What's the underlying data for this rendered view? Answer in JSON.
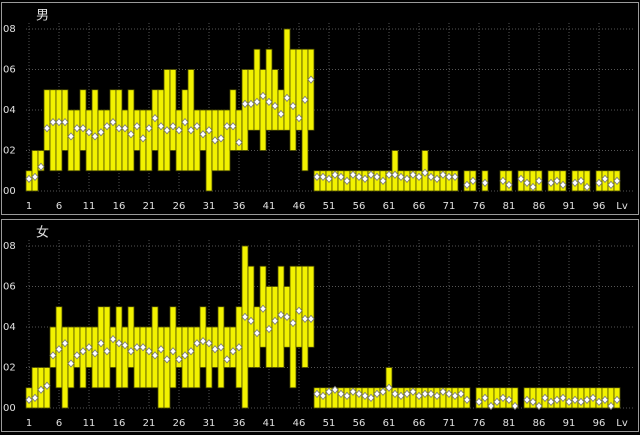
{
  "chart_data": [
    {
      "type": "range",
      "title": "男",
      "x_label": "Lv",
      "color": "#f2f200",
      "marker_color": "#ffffff",
      "grid": true,
      "x": [
        1,
        2,
        3,
        4,
        5,
        6,
        7,
        8,
        9,
        10,
        11,
        12,
        13,
        14,
        15,
        16,
        17,
        18,
        19,
        20,
        21,
        22,
        23,
        24,
        25,
        26,
        27,
        28,
        29,
        30,
        31,
        32,
        33,
        34,
        35,
        36,
        37,
        38,
        39,
        40,
        41,
        42,
        43,
        44,
        45,
        46,
        47,
        48,
        49,
        50,
        51,
        52,
        53,
        54,
        55,
        56,
        57,
        58,
        59,
        60,
        61,
        62,
        63,
        64,
        65,
        66,
        67,
        68,
        69,
        70,
        71,
        72,
        73,
        74,
        75,
        76,
        77,
        78,
        79,
        80,
        81,
        82,
        83,
        84,
        85,
        86,
        87,
        88,
        89,
        90,
        91,
        92,
        93,
        94,
        95,
        96,
        97,
        98,
        99
      ],
      "min": [
        0,
        0,
        1,
        2,
        1,
        1,
        2,
        1,
        1,
        2,
        1,
        1,
        1,
        1,
        1,
        1,
        1,
        1,
        2,
        1,
        1,
        2,
        1,
        1,
        2,
        1,
        1,
        1,
        1,
        2,
        0,
        1,
        1,
        1,
        2,
        2,
        2,
        3,
        3,
        2,
        3,
        3,
        3,
        3,
        2,
        3,
        1,
        3,
        0,
        0,
        0,
        0,
        0,
        0,
        0,
        0,
        0,
        0,
        0,
        0,
        0,
        0,
        0,
        0,
        0,
        0,
        0,
        0,
        0,
        0,
        0,
        0,
        null,
        0,
        0,
        null,
        0,
        null,
        null,
        0,
        0,
        null,
        0,
        0,
        0,
        0,
        null,
        0,
        0,
        0,
        null,
        0,
        0,
        0,
        null,
        0,
        0,
        0,
        0
      ],
      "max": [
        1,
        2,
        2,
        5,
        5,
        5,
        5,
        4,
        4,
        5,
        4,
        5,
        4,
        4,
        5,
        5,
        4,
        5,
        4,
        4,
        4,
        5,
        5,
        6,
        6,
        4,
        5,
        6,
        4,
        4,
        4,
        4,
        4,
        4,
        5,
        4,
        6,
        6,
        7,
        6,
        7,
        6,
        5,
        8,
        7,
        7,
        7,
        7,
        1,
        1,
        1,
        1,
        1,
        1,
        1,
        1,
        1,
        1,
        1,
        1,
        1,
        2,
        1,
        1,
        1,
        1,
        2,
        1,
        1,
        1,
        1,
        1,
        null,
        1,
        1,
        null,
        1,
        null,
        null,
        1,
        1,
        null,
        1,
        1,
        1,
        1,
        null,
        1,
        1,
        1,
        null,
        1,
        1,
        1,
        null,
        1,
        1,
        1,
        1
      ],
      "values": [
        0.6,
        0.7,
        1.2,
        3.1,
        3.4,
        3.4,
        3.4,
        2.7,
        3.1,
        3.1,
        2.9,
        2.7,
        2.9,
        3.2,
        3.4,
        3.1,
        3.1,
        2.8,
        3.2,
        2.6,
        3.1,
        3.6,
        3.2,
        3.0,
        3.2,
        3.0,
        3.4,
        3.0,
        3.2,
        2.8,
        3.0,
        2.5,
        2.6,
        3.2,
        3.2,
        2.4,
        4.3,
        4.3,
        4.4,
        4.7,
        4.4,
        4.2,
        3.8,
        4.6,
        4.2,
        3.6,
        4.5,
        5.5,
        0.7,
        0.7,
        0.6,
        0.8,
        0.7,
        0.5,
        0.8,
        0.7,
        0.6,
        0.8,
        0.7,
        0.5,
        0.8,
        0.8,
        0.7,
        0.6,
        0.8,
        0.7,
        0.9,
        0.7,
        0.6,
        0.8,
        0.7,
        0.7,
        null,
        0.3,
        0.5,
        null,
        0.4,
        null,
        null,
        0.5,
        0.3,
        null,
        0.6,
        0.4,
        0.2,
        0.5,
        null,
        0.4,
        0.5,
        0.3,
        null,
        0.4,
        0.5,
        0.2,
        null,
        0.4,
        0.6,
        0.3,
        0.5
      ],
      "xlim": [
        0.5,
        100.5
      ],
      "xticks": [
        1,
        6,
        11,
        16,
        21,
        26,
        31,
        36,
        41,
        46,
        51,
        56,
        61,
        66,
        71,
        76,
        81,
        86,
        91,
        96
      ],
      "ylim": [
        0,
        8
      ],
      "yticks": [
        {
          "value": 0,
          "label": "00"
        },
        {
          "value": 2,
          "label": "02"
        },
        {
          "value": 4,
          "label": "04"
        },
        {
          "value": 6,
          "label": "06"
        },
        {
          "value": 8,
          "label": "08"
        }
      ]
    },
    {
      "type": "range",
      "title": "女",
      "x_label": "Lv",
      "color": "#f2f200",
      "marker_color": "#ffffff",
      "grid": true,
      "x": [
        1,
        2,
        3,
        4,
        5,
        6,
        7,
        8,
        9,
        10,
        11,
        12,
        13,
        14,
        15,
        16,
        17,
        18,
        19,
        20,
        21,
        22,
        23,
        24,
        25,
        26,
        27,
        28,
        29,
        30,
        31,
        32,
        33,
        34,
        35,
        36,
        37,
        38,
        39,
        40,
        41,
        42,
        43,
        44,
        45,
        46,
        47,
        48,
        49,
        50,
        51,
        52,
        53,
        54,
        55,
        56,
        57,
        58,
        59,
        60,
        61,
        62,
        63,
        64,
        65,
        66,
        67,
        68,
        69,
        70,
        71,
        72,
        73,
        74,
        75,
        76,
        77,
        78,
        79,
        80,
        81,
        82,
        83,
        84,
        85,
        86,
        87,
        88,
        89,
        90,
        91,
        92,
        93,
        94,
        95,
        96,
        97,
        98,
        99
      ],
      "min": [
        0,
        0,
        0,
        0,
        2,
        1,
        0,
        1,
        2,
        1,
        2,
        1,
        1,
        1,
        2,
        1,
        1,
        2,
        1,
        1,
        1,
        1,
        0,
        0,
        1,
        2,
        1,
        1,
        1,
        2,
        1,
        2,
        1,
        2,
        2,
        1,
        0,
        2,
        2,
        3,
        2,
        2,
        2,
        3,
        1,
        3,
        2,
        3,
        0,
        0,
        0,
        0,
        0,
        0,
        0,
        0,
        0,
        0,
        0,
        0,
        0,
        0,
        0,
        0,
        0,
        0,
        0,
        0,
        0,
        0,
        0,
        0,
        0,
        0,
        null,
        0,
        0,
        0,
        0,
        0,
        0,
        0,
        null,
        0,
        0,
        0,
        0,
        0,
        0,
        0,
        0,
        0,
        0,
        0,
        0,
        0,
        0,
        0,
        0
      ],
      "max": [
        1,
        2,
        2,
        2,
        4,
        5,
        4,
        4,
        4,
        4,
        4,
        4,
        5,
        5,
        4,
        5,
        4,
        5,
        4,
        4,
        4,
        5,
        4,
        4,
        5,
        4,
        4,
        4,
        4,
        5,
        4,
        4,
        5,
        4,
        4,
        5,
        8,
        7,
        5,
        7,
        6,
        6,
        7,
        6,
        7,
        7,
        7,
        7,
        1,
        1,
        1,
        1,
        1,
        1,
        1,
        1,
        1,
        1,
        1,
        1,
        2,
        1,
        1,
        1,
        1,
        1,
        1,
        1,
        1,
        1,
        1,
        1,
        1,
        1,
        null,
        1,
        1,
        1,
        1,
        1,
        1,
        1,
        null,
        1,
        1,
        1,
        1,
        1,
        1,
        1,
        1,
        1,
        1,
        1,
        1,
        1,
        1,
        1,
        1
      ],
      "values": [
        0.4,
        0.5,
        0.9,
        1.1,
        2.6,
        2.9,
        3.2,
        2.2,
        2.6,
        2.8,
        3.0,
        2.7,
        3.2,
        2.8,
        3.4,
        3.2,
        3.1,
        2.8,
        3.0,
        3.0,
        2.8,
        2.6,
        2.9,
        2.4,
        2.8,
        2.4,
        2.6,
        2.8,
        3.2,
        3.3,
        3.2,
        2.9,
        3.0,
        2.4,
        2.8,
        3.0,
        4.5,
        4.3,
        3.7,
        4.9,
        3.9,
        4.3,
        4.6,
        4.5,
        4.2,
        4.8,
        4.4,
        4.4,
        0.7,
        0.6,
        0.8,
        0.9,
        0.7,
        0.6,
        0.8,
        0.7,
        0.6,
        0.5,
        0.7,
        0.8,
        1.0,
        0.7,
        0.6,
        0.7,
        0.8,
        0.6,
        0.7,
        0.7,
        0.6,
        0.8,
        0.7,
        0.6,
        0.7,
        0.4,
        null,
        0.3,
        0.5,
        0.1,
        0.3,
        0.5,
        0.4,
        0.1,
        null,
        0.4,
        0.3,
        0.1,
        0.5,
        0.3,
        0.4,
        0.5,
        0.3,
        0.4,
        0.3,
        0.4,
        0.5,
        0.3,
        0.4,
        0.1,
        0.4
      ],
      "xlim": [
        0.5,
        100.5
      ],
      "xticks": [
        1,
        6,
        11,
        16,
        21,
        26,
        31,
        36,
        41,
        46,
        51,
        56,
        61,
        66,
        71,
        76,
        81,
        86,
        91,
        96
      ],
      "ylim": [
        0,
        8
      ],
      "yticks": [
        {
          "value": 0,
          "label": "00"
        },
        {
          "value": 2,
          "label": "02"
        },
        {
          "value": 4,
          "label": "04"
        },
        {
          "value": 6,
          "label": "06"
        },
        {
          "value": 8,
          "label": "08"
        }
      ]
    }
  ]
}
